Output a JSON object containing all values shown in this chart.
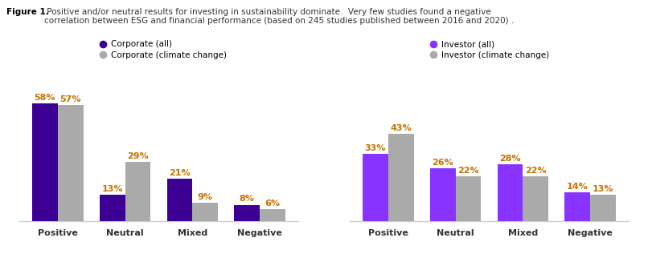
{
  "title_bold": "Figure 1.",
  "title_rest": " Positive and/or neutral results for investing in sustainability dominate.  Very few studies found a negative\ncorrelation between ESG and financial performance (based on 245 studies published between 2016 and 2020) .",
  "corporate": {
    "categories": [
      "Positive",
      "Neutral",
      "Mixed",
      "Negative"
    ],
    "all": [
      58,
      13,
      21,
      8
    ],
    "climate_change": [
      57,
      29,
      9,
      6
    ],
    "color_all": "#3d0094",
    "color_climate": "#aaaaaa",
    "legend1": "Corporate (all)",
    "legend2": "Corporate (climate change)"
  },
  "investor": {
    "categories": [
      "Positive",
      "Neutral",
      "Mixed",
      "Negative"
    ],
    "all": [
      33,
      26,
      28,
      14
    ],
    "climate_change": [
      43,
      22,
      22,
      13
    ],
    "color_all": "#8833ff",
    "color_climate": "#aaaaaa",
    "legend1": "Investor (all)",
    "legend2": "Investor (climate change)"
  },
  "bar_width": 0.38,
  "label_color": "#c87000",
  "xlabel_color": "#333333",
  "title_color_bold": "#000000",
  "title_color_rest": "#333333",
  "background_color": "#ffffff",
  "ylim": [
    0,
    65
  ]
}
